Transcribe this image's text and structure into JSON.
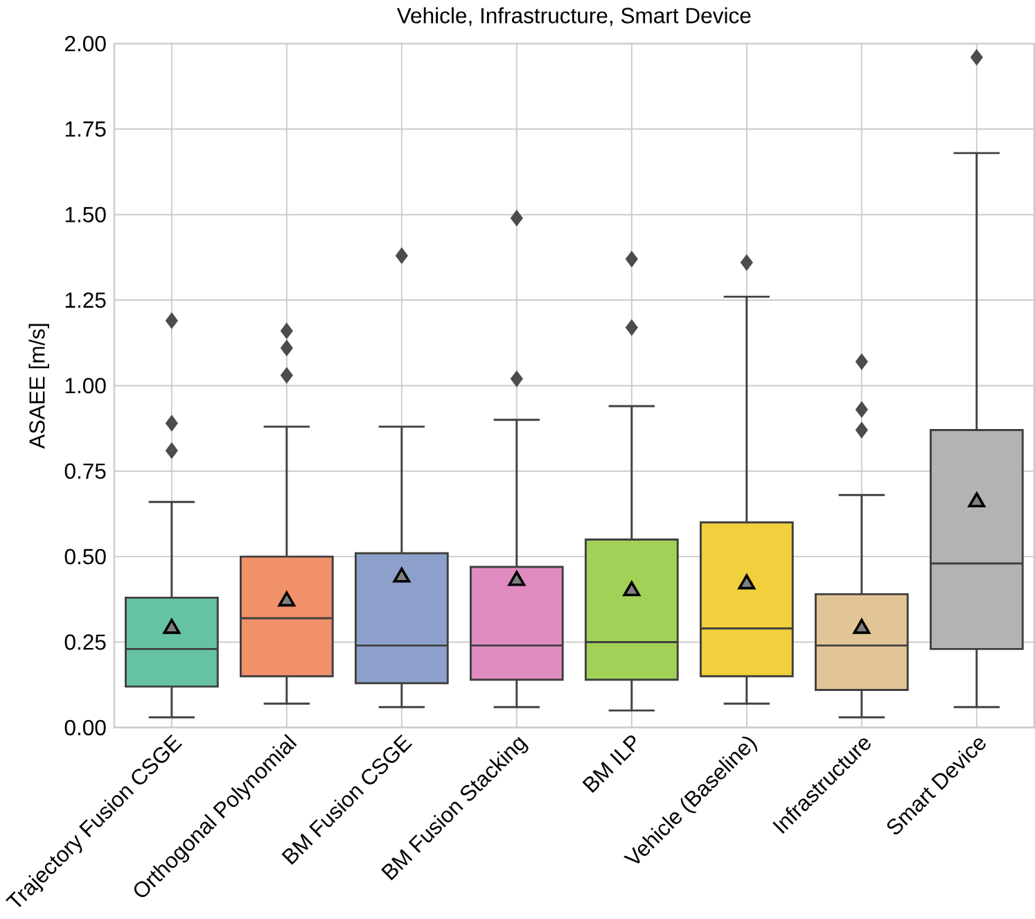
{
  "chart_data": {
    "type": "box",
    "title": "Vehicle, Infrastructure, Smart Device",
    "ylabel": "ASAEE [m/s]",
    "categories": [
      "Trajectory Fusion CSGE",
      "Orthogonal Polynomial",
      "BM Fusion CSGE",
      "BM Fusion Stacking",
      "BM ILP",
      "Vehicle (Baseline)",
      "Infrastructure",
      "Smart Device"
    ],
    "colors": [
      "#66c2a5",
      "#f0916a",
      "#8da0cb",
      "#e08cc0",
      "#a2d157",
      "#f0d03c",
      "#e2c596",
      "#b3b3b3"
    ],
    "boxes": [
      {
        "low": 0.03,
        "q1": 0.12,
        "median": 0.23,
        "q3": 0.38,
        "high": 0.66,
        "mean": 0.29,
        "outliers": [
          0.81,
          0.89,
          1.19
        ]
      },
      {
        "low": 0.07,
        "q1": 0.15,
        "median": 0.32,
        "q3": 0.5,
        "high": 0.88,
        "mean": 0.37,
        "outliers": [
          1.03,
          1.11,
          1.16
        ]
      },
      {
        "low": 0.06,
        "q1": 0.13,
        "median": 0.24,
        "q3": 0.51,
        "high": 0.88,
        "mean": 0.44,
        "outliers": [
          1.38
        ]
      },
      {
        "low": 0.06,
        "q1": 0.14,
        "median": 0.24,
        "q3": 0.47,
        "high": 0.9,
        "mean": 0.43,
        "outliers": [
          1.02,
          1.49
        ]
      },
      {
        "low": 0.05,
        "q1": 0.14,
        "median": 0.25,
        "q3": 0.55,
        "high": 0.94,
        "mean": 0.4,
        "outliers": [
          1.17,
          1.37
        ]
      },
      {
        "low": 0.07,
        "q1": 0.15,
        "median": 0.29,
        "q3": 0.6,
        "high": 1.26,
        "mean": 0.42,
        "outliers": [
          1.36
        ]
      },
      {
        "low": 0.03,
        "q1": 0.11,
        "median": 0.24,
        "q3": 0.39,
        "high": 0.68,
        "mean": 0.29,
        "outliers": [
          0.87,
          0.93,
          1.07
        ]
      },
      {
        "low": 0.06,
        "q1": 0.23,
        "median": 0.48,
        "q3": 0.87,
        "high": 1.68,
        "mean": 0.66,
        "outliers": [
          1.96
        ]
      }
    ],
    "ylim": [
      0,
      2
    ],
    "yticks": [
      {
        "value": 0,
        "label": "0.00"
      },
      {
        "value": 0.25,
        "label": "0.25"
      },
      {
        "value": 0.5,
        "label": "0.50"
      },
      {
        "value": 0.75,
        "label": "0.75"
      },
      {
        "value": 1,
        "label": "1.00"
      },
      {
        "value": 1.25,
        "label": "1.25"
      },
      {
        "value": 1.5,
        "label": "1.50"
      },
      {
        "value": 1.75,
        "label": "1.75"
      },
      {
        "value": 2,
        "label": "2.00"
      }
    ],
    "grid": true
  }
}
